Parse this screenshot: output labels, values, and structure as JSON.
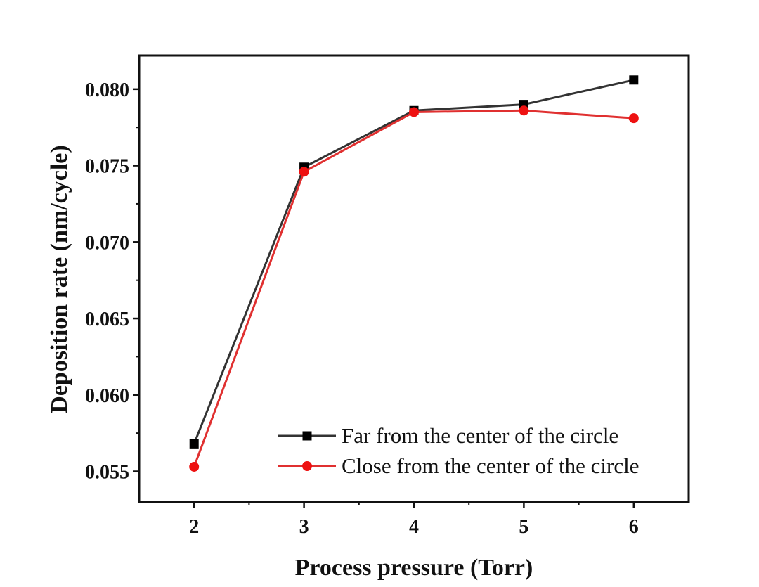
{
  "chart_data": {
    "type": "line",
    "title": "",
    "xlabel": "Process pressure (Torr)",
    "ylabel": "Deposition rate (nm/cycle)",
    "x": [
      2,
      3,
      4,
      5,
      6
    ],
    "x_tick_labels": [
      "2",
      "3",
      "4",
      "5",
      "6"
    ],
    "xlim": [
      1.5,
      6.5
    ],
    "ylim": [
      0.053,
      0.0822
    ],
    "y_ticks": [
      0.055,
      0.06,
      0.065,
      0.07,
      0.075,
      0.08
    ],
    "y_tick_labels": [
      "0.055",
      "0.060",
      "0.065",
      "0.070",
      "0.075",
      "0.080"
    ],
    "grid": false,
    "legend_position": "bottom-right",
    "series": [
      {
        "name": "Far from the center of the circle",
        "values": [
          0.0568,
          0.0749,
          0.0786,
          0.079,
          0.0806
        ],
        "line_color": "#333333",
        "marker_color": "#000000",
        "marker": "square"
      },
      {
        "name": "Close from the center of the circle",
        "values": [
          0.0553,
          0.0746,
          0.0785,
          0.0786,
          0.0781
        ],
        "line_color": "#e03030",
        "marker_color": "#ee1111",
        "marker": "circle"
      }
    ]
  }
}
